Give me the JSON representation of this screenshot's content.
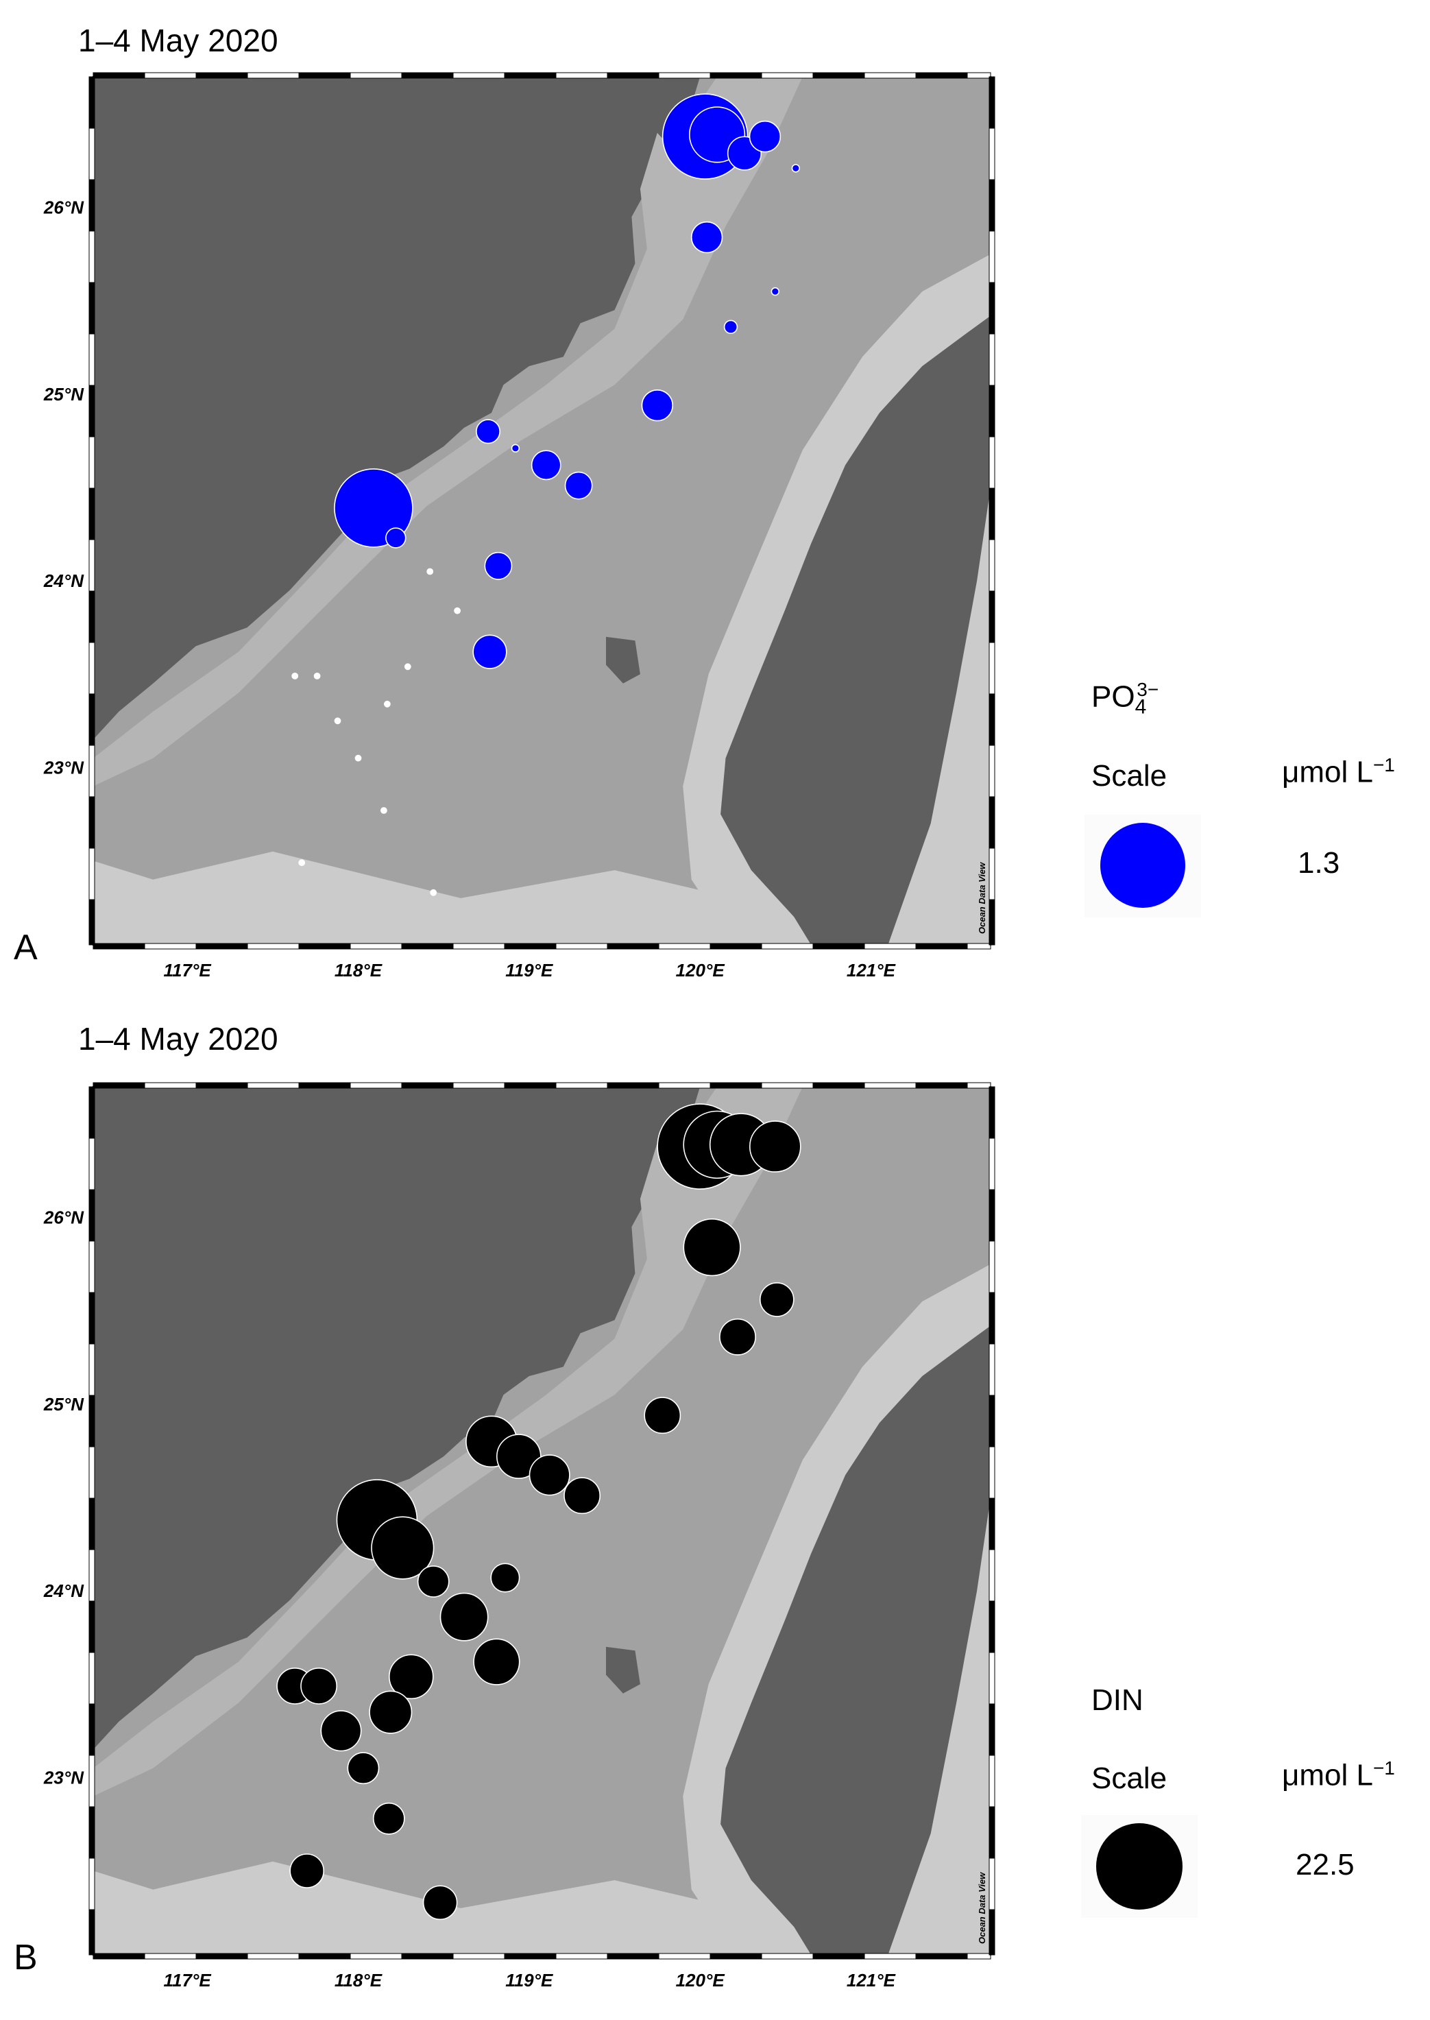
{
  "panels": [
    {
      "id": "A",
      "date": "1–4 May 2020",
      "letter": "A",
      "marker_color": "#0000ff",
      "legend": {
        "variable_main": "PO",
        "variable_sub": "4",
        "variable_sup": "3−",
        "scale_label": "Scale",
        "unit_main": "μmol L",
        "unit_sup": "−1",
        "value": "1.3"
      },
      "stations": [
        {
          "lon": 120.03,
          "lat": 26.38,
          "value": 1.3
        },
        {
          "lon": 120.1,
          "lat": 26.39,
          "value": 0.55
        },
        {
          "lon": 120.26,
          "lat": 26.29,
          "value": 0.2
        },
        {
          "lon": 120.38,
          "lat": 26.38,
          "value": 0.17
        },
        {
          "lon": 120.56,
          "lat": 26.21,
          "value": 0.01
        },
        {
          "lon": 120.04,
          "lat": 25.84,
          "value": 0.17
        },
        {
          "lon": 120.44,
          "lat": 25.55,
          "value": 0.01
        },
        {
          "lon": 120.18,
          "lat": 25.36,
          "value": 0.03
        },
        {
          "lon": 119.75,
          "lat": 24.94,
          "value": 0.17
        },
        {
          "lon": 118.76,
          "lat": 24.8,
          "value": 0.1
        },
        {
          "lon": 118.92,
          "lat": 24.71,
          "value": 0.01
        },
        {
          "lon": 119.1,
          "lat": 24.62,
          "value": 0.15
        },
        {
          "lon": 119.29,
          "lat": 24.51,
          "value": 0.13
        },
        {
          "lon": 118.09,
          "lat": 24.39,
          "value": 1.1
        },
        {
          "lon": 118.22,
          "lat": 24.23,
          "value": 0.07
        },
        {
          "lon": 118.82,
          "lat": 24.08,
          "value": 0.13
        },
        {
          "lon": 118.77,
          "lat": 23.62,
          "value": 0.2
        },
        {
          "lon": 118.42,
          "lat": 24.05,
          "value": 0.003
        },
        {
          "lon": 118.58,
          "lat": 23.84,
          "value": 0.003
        },
        {
          "lon": 118.29,
          "lat": 23.54,
          "value": 0.003
        },
        {
          "lon": 117.63,
          "lat": 23.49,
          "value": 0.003
        },
        {
          "lon": 117.76,
          "lat": 23.49,
          "value": 0.003
        },
        {
          "lon": 118.17,
          "lat": 23.34,
          "value": 0.003
        },
        {
          "lon": 117.88,
          "lat": 23.25,
          "value": 0.003
        },
        {
          "lon": 118.0,
          "lat": 23.05,
          "value": 0.003
        },
        {
          "lon": 118.15,
          "lat": 22.77,
          "value": 0.003
        },
        {
          "lon": 117.67,
          "lat": 22.49,
          "value": 0.003
        },
        {
          "lon": 118.44,
          "lat": 22.33,
          "value": 0.003
        }
      ]
    },
    {
      "id": "B",
      "date": "1–4 May 2020",
      "letter": "B",
      "marker_color": "#000000",
      "legend": {
        "variable_main": "DIN",
        "variable_sub": "",
        "variable_sup": "",
        "scale_label": "Scale",
        "unit_main": "μmol L",
        "unit_sup": "−1",
        "value": "22.5"
      },
      "stations": [
        {
          "lon": 120.0,
          "lat": 26.38,
          "value": 22.5
        },
        {
          "lon": 120.1,
          "lat": 26.39,
          "value": 14
        },
        {
          "lon": 120.24,
          "lat": 26.39,
          "value": 12
        },
        {
          "lon": 120.44,
          "lat": 26.38,
          "value": 8
        },
        {
          "lon": 120.07,
          "lat": 25.84,
          "value": 10
        },
        {
          "lon": 120.45,
          "lat": 25.56,
          "value": 3.5
        },
        {
          "lon": 120.22,
          "lat": 25.36,
          "value": 4
        },
        {
          "lon": 119.78,
          "lat": 24.94,
          "value": 4
        },
        {
          "lon": 118.78,
          "lat": 24.8,
          "value": 8
        },
        {
          "lon": 118.94,
          "lat": 24.72,
          "value": 6
        },
        {
          "lon": 119.12,
          "lat": 24.62,
          "value": 5
        },
        {
          "lon": 119.31,
          "lat": 24.51,
          "value": 4
        },
        {
          "lon": 118.11,
          "lat": 24.38,
          "value": 20
        },
        {
          "lon": 118.26,
          "lat": 24.23,
          "value": 12
        },
        {
          "lon": 118.44,
          "lat": 24.05,
          "value": 3
        },
        {
          "lon": 118.86,
          "lat": 24.07,
          "value": 2.5
        },
        {
          "lon": 118.62,
          "lat": 23.86,
          "value": 7
        },
        {
          "lon": 118.81,
          "lat": 23.62,
          "value": 6.5
        },
        {
          "lon": 118.31,
          "lat": 23.54,
          "value": 6
        },
        {
          "lon": 117.63,
          "lat": 23.49,
          "value": 4
        },
        {
          "lon": 117.77,
          "lat": 23.49,
          "value": 4
        },
        {
          "lon": 118.19,
          "lat": 23.35,
          "value": 5.5
        },
        {
          "lon": 117.9,
          "lat": 23.25,
          "value": 5
        },
        {
          "lon": 118.03,
          "lat": 23.05,
          "value": 3
        },
        {
          "lon": 118.18,
          "lat": 22.78,
          "value": 3
        },
        {
          "lon": 117.7,
          "lat": 22.5,
          "value": 3.5
        },
        {
          "lon": 118.48,
          "lat": 22.33,
          "value": 3.5
        }
      ]
    }
  ],
  "axes": {
    "lat_labels": [
      "26°N",
      "25°N",
      "24°N",
      "23°N"
    ],
    "lat_values": [
      26,
      25,
      24,
      23
    ],
    "lon_labels": [
      "117°E",
      "118°E",
      "119°E",
      "120°E",
      "121°E"
    ],
    "lon_values": [
      117,
      118,
      119,
      120,
      121
    ],
    "lon_range": [
      116.45,
      121.7
    ],
    "lat_range": [
      22.05,
      26.7
    ]
  },
  "credit": "Ocean Data View",
  "colors": {
    "land": "#5f5f5f",
    "sea_mid": "#a2a2a2",
    "sea_shelf": "#b5b5b5",
    "sea_light": "#cbcbcb",
    "frame_dark": "#000000",
    "frame_light": "#ffffff"
  }
}
